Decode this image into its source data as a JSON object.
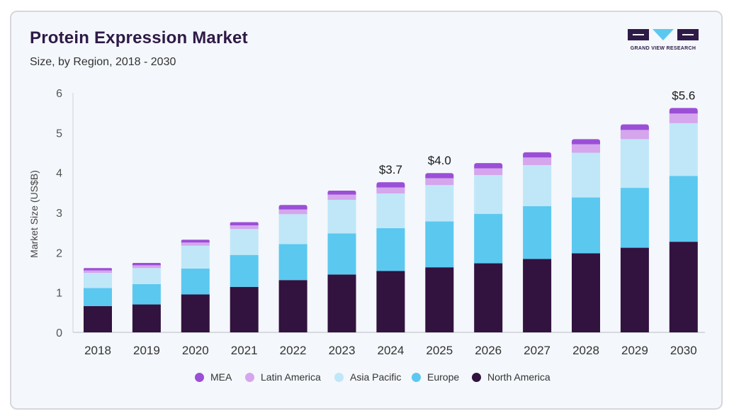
{
  "header": {
    "title": "Protein Expression Market",
    "subtitle": "Size, by Region, 2018 - 2030"
  },
  "brand": {
    "name": "GRAND VIEW RESEARCH",
    "logo_icon": "grand-view-research-logo",
    "color": "#2e1a47",
    "accent": "#5bc8f0"
  },
  "chart_data": {
    "type": "bar",
    "stacked": true,
    "title": "Protein Expression Market",
    "subtitle": "Size, by Region, 2018 - 2030",
    "xlabel": "",
    "ylabel": "Market Size (US$B)",
    "ylim": [
      0,
      6
    ],
    "yticks": [
      0,
      1,
      2,
      3,
      4,
      5,
      6
    ],
    "grid": false,
    "legend_position": "bottom",
    "categories": [
      "2018",
      "2019",
      "2020",
      "2021",
      "2022",
      "2023",
      "2024",
      "2025",
      "2026",
      "2027",
      "2028",
      "2029",
      "2030"
    ],
    "series": [
      {
        "name": "North America",
        "color": "#32123f",
        "values": [
          0.66,
          0.7,
          0.95,
          1.14,
          1.31,
          1.45,
          1.54,
          1.63,
          1.73,
          1.84,
          1.98,
          2.12,
          2.27
        ]
      },
      {
        "name": "Europe",
        "color": "#5bc8f0",
        "values": [
          0.45,
          0.51,
          0.65,
          0.8,
          0.9,
          1.03,
          1.07,
          1.15,
          1.24,
          1.32,
          1.4,
          1.5,
          1.65
        ]
      },
      {
        "name": "Asia Pacific",
        "color": "#bfe7f8",
        "values": [
          0.38,
          0.4,
          0.57,
          0.65,
          0.75,
          0.84,
          0.87,
          0.91,
          0.97,
          1.03,
          1.12,
          1.22,
          1.32
        ]
      },
      {
        "name": "Latin America",
        "color": "#d5a6ec",
        "values": [
          0.06,
          0.07,
          0.08,
          0.09,
          0.12,
          0.13,
          0.15,
          0.17,
          0.17,
          0.19,
          0.21,
          0.23,
          0.24
        ]
      },
      {
        "name": "MEA",
        "color": "#9b4fd7",
        "values": [
          0.06,
          0.06,
          0.07,
          0.08,
          0.11,
          0.1,
          0.13,
          0.13,
          0.13,
          0.13,
          0.13,
          0.14,
          0.14
        ]
      }
    ],
    "annotations": [
      {
        "category": "2024",
        "text": "$3.7"
      },
      {
        "category": "2025",
        "text": "$4.0"
      },
      {
        "category": "2030",
        "text": "$5.6"
      }
    ]
  }
}
